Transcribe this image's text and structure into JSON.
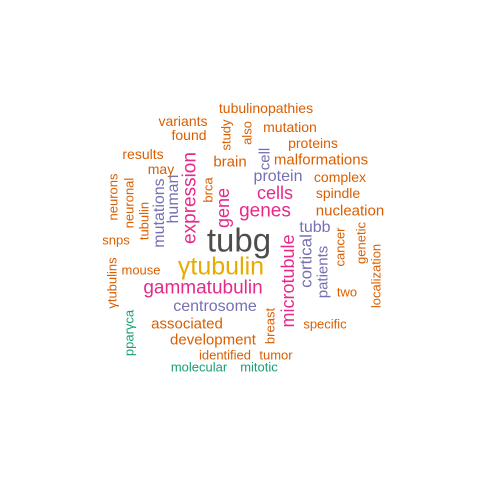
{
  "colors": {
    "dark_gray": "#4d4d4d",
    "gold": "#e6ab02",
    "magenta": "#e7298a",
    "purple": "#7570b3",
    "orange": "#d95f02",
    "green": "#1b9e77"
  },
  "words": [
    {
      "text": "tubg",
      "color": "dark_gray",
      "freq": 1.0
    },
    {
      "text": "γtubulin",
      "color": "gold",
      "freq": 0.8
    },
    {
      "text": "gammatubulin",
      "color": "magenta",
      "freq": 0.6
    },
    {
      "text": "genes",
      "color": "magenta",
      "freq": 0.55
    },
    {
      "text": "expression",
      "color": "magenta",
      "freq": 0.55
    },
    {
      "text": "microtubule",
      "color": "magenta",
      "freq": 0.5
    },
    {
      "text": "cells",
      "color": "magenta",
      "freq": 0.5
    },
    {
      "text": "gene",
      "color": "magenta",
      "freq": 0.5
    },
    {
      "text": "cortical",
      "color": "purple",
      "freq": 0.45
    },
    {
      "text": "protein",
      "color": "purple",
      "freq": 0.45
    },
    {
      "text": "centrosome",
      "color": "purple",
      "freq": 0.45
    },
    {
      "text": "mutations",
      "color": "purple",
      "freq": 0.45
    },
    {
      "text": "human",
      "color": "purple",
      "freq": 0.45
    },
    {
      "text": "tubb",
      "color": "purple",
      "freq": 0.4
    },
    {
      "text": "patients",
      "color": "purple",
      "freq": 0.4
    },
    {
      "text": "cell",
      "color": "purple",
      "freq": 0.4
    },
    {
      "text": "associated",
      "color": "orange",
      "freq": 0.35
    },
    {
      "text": "development",
      "color": "orange",
      "freq": 0.35
    },
    {
      "text": "nucleation",
      "color": "orange",
      "freq": 0.35
    },
    {
      "text": "brain",
      "color": "orange",
      "freq": 0.35
    },
    {
      "text": "malformations",
      "color": "orange",
      "freq": 0.35
    },
    {
      "text": "spindle",
      "color": "orange",
      "freq": 0.3
    },
    {
      "text": "tubulinopathies",
      "color": "orange",
      "freq": 0.3
    },
    {
      "text": "variants",
      "color": "orange",
      "freq": 0.3
    },
    {
      "text": "mutation",
      "color": "orange",
      "freq": 0.3
    },
    {
      "text": "found",
      "color": "orange",
      "freq": 0.3
    },
    {
      "text": "proteins",
      "color": "orange",
      "freq": 0.3
    },
    {
      "text": "results",
      "color": "orange",
      "freq": 0.3
    },
    {
      "text": "complex",
      "color": "orange",
      "freq": 0.3
    },
    {
      "text": "may",
      "color": "orange",
      "freq": 0.3
    },
    {
      "text": "study",
      "color": "orange",
      "freq": 0.3
    },
    {
      "text": "also",
      "color": "orange",
      "freq": 0.3
    },
    {
      "text": "brca",
      "color": "orange",
      "freq": 0.3
    },
    {
      "text": "neurons",
      "color": "orange",
      "freq": 0.3
    },
    {
      "text": "neuronal",
      "color": "orange",
      "freq": 0.3
    },
    {
      "text": "tubulin",
      "color": "orange",
      "freq": 0.3
    },
    {
      "text": "snps",
      "color": "orange",
      "freq": 0.3
    },
    {
      "text": "mouse",
      "color": "orange",
      "freq": 0.3
    },
    {
      "text": "γtubulins",
      "color": "orange",
      "freq": 0.3
    },
    {
      "text": "cancer",
      "color": "orange",
      "freq": 0.3
    },
    {
      "text": "genetic",
      "color": "orange",
      "freq": 0.3
    },
    {
      "text": "localization",
      "color": "orange",
      "freq": 0.3
    },
    {
      "text": "two",
      "color": "orange",
      "freq": 0.3
    },
    {
      "text": "specific",
      "color": "orange",
      "freq": 0.3
    },
    {
      "text": "breast",
      "color": "orange",
      "freq": 0.3
    },
    {
      "text": "identified",
      "color": "orange",
      "freq": 0.3
    },
    {
      "text": "tumor",
      "color": "orange",
      "freq": 0.3
    },
    {
      "text": "pparγca",
      "color": "green",
      "freq": 0.25
    },
    {
      "text": "molecular",
      "color": "green",
      "freq": 0.25
    },
    {
      "text": "mitotic",
      "color": "green",
      "freq": 0.25
    }
  ]
}
